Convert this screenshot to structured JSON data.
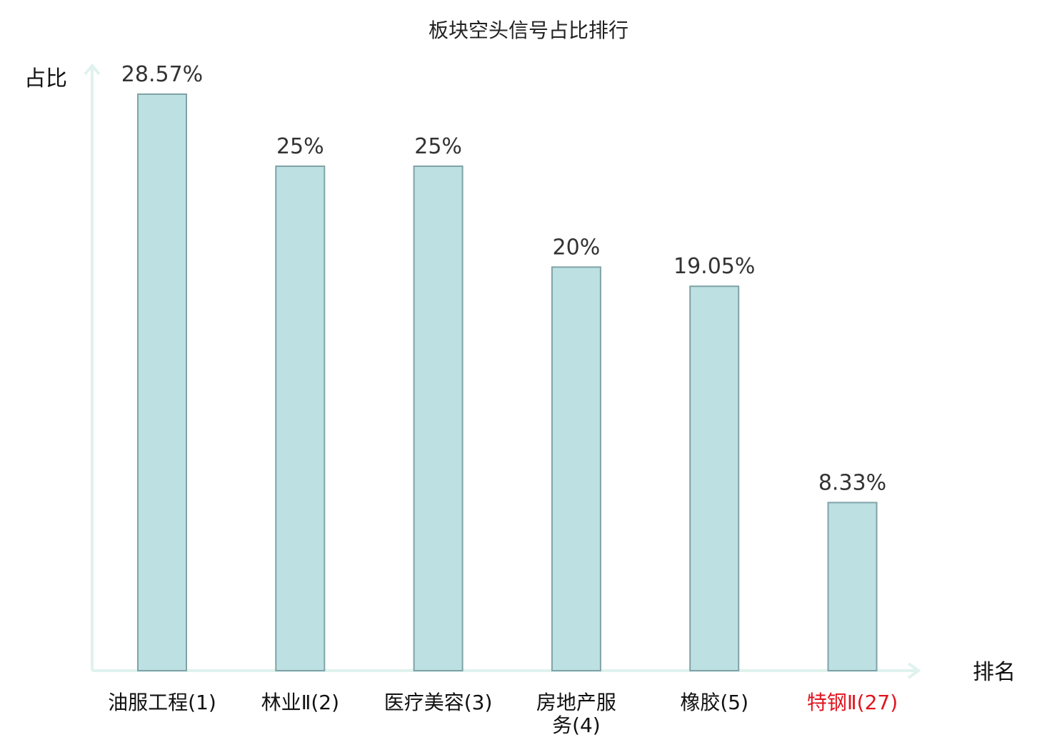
{
  "chart_data": {
    "type": "bar",
    "title": "板块空头信号占比排行",
    "ylabel": "占比",
    "xlabel": "排名",
    "categories": [
      {
        "lines": [
          "油服工程(1)"
        ],
        "highlight": false
      },
      {
        "lines": [
          "林业Ⅱ(2)"
        ],
        "highlight": false
      },
      {
        "lines": [
          "医疗美容(3)"
        ],
        "highlight": false
      },
      {
        "lines": [
          "房地产服",
          "务(4)"
        ],
        "highlight": false
      },
      {
        "lines": [
          "橡胶(5)"
        ],
        "highlight": false
      },
      {
        "lines": [
          "特钢Ⅱ(27)"
        ],
        "highlight": true
      }
    ],
    "values": [
      28.57,
      25,
      25,
      20,
      19.05,
      8.33
    ],
    "value_labels": [
      "28.57%",
      "25%",
      "25%",
      "20%",
      "19.05%",
      "8.33%"
    ],
    "ylim": [
      0,
      30
    ],
    "grid": false,
    "colors": {
      "bar_fill": "#bde0e3",
      "bar_stroke": "#7fa3a7",
      "axis": "#dff2ee",
      "highlight_text": "#e0141e"
    }
  }
}
